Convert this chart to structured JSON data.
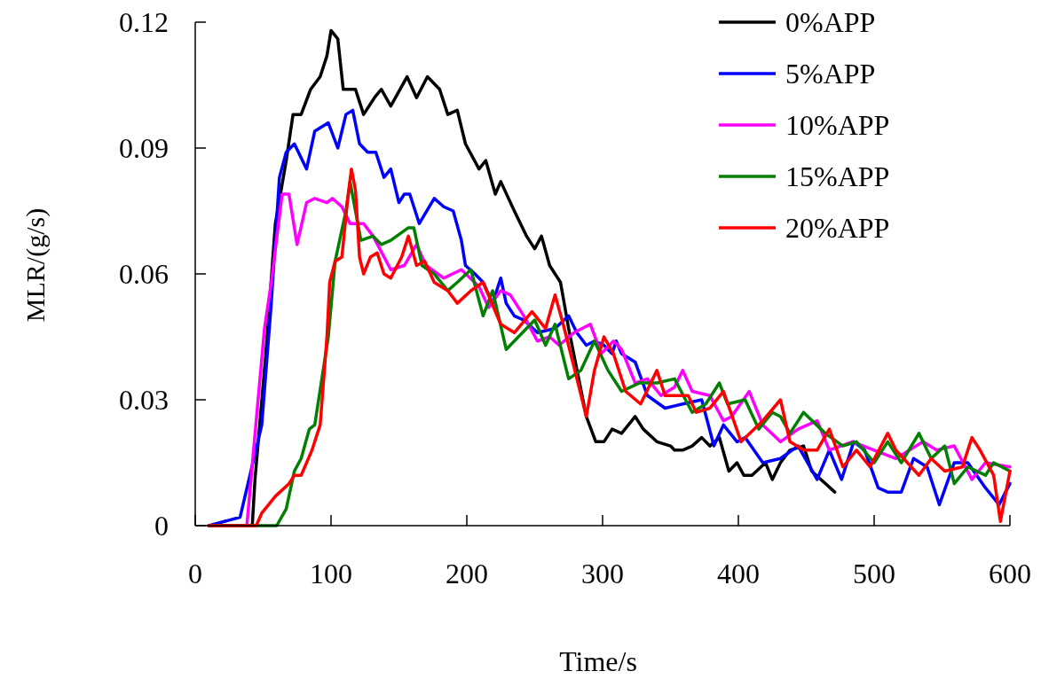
{
  "chart_data": {
    "type": "line",
    "xlabel": "Time/s",
    "ylabel": "MLR/(g/s)",
    "xlim": [
      0,
      600
    ],
    "xticks": [
      0,
      100,
      200,
      300,
      400,
      500,
      600
    ],
    "ylim": [
      0,
      0.12
    ],
    "yticks": [
      0,
      0.03,
      0.06,
      0.09,
      0.12
    ],
    "grid": false,
    "legend": "top right",
    "marker": "none",
    "line_style": "solid",
    "series": [
      {
        "name": "0%APP",
        "color": "#000000",
        "x": [
          10,
          42,
          44,
          52,
          59,
          67,
          72,
          78,
          85,
          92,
          97,
          100,
          105,
          109,
          118,
          124,
          132,
          137,
          144,
          156,
          163,
          171,
          180,
          186,
          193,
          199,
          209,
          214,
          221,
          225,
          235,
          244,
          250,
          255,
          261,
          269,
          275,
          288,
          295,
          301,
          307,
          314,
          324,
          330,
          340,
          350,
          353,
          359,
          366,
          373,
          379,
          386,
          393,
          399,
          404,
          410,
          420,
          425,
          431,
          438,
          448,
          454,
          471
        ],
        "values": [
          0,
          0,
          0.011,
          0.041,
          0.072,
          0.087,
          0.098,
          0.098,
          0.104,
          0.107,
          0.112,
          0.118,
          0.116,
          0.104,
          0.104,
          0.098,
          0.102,
          0.104,
          0.1,
          0.107,
          0.102,
          0.107,
          0.104,
          0.098,
          0.099,
          0.091,
          0.085,
          0.087,
          0.079,
          0.082,
          0.075,
          0.069,
          0.066,
          0.069,
          0.062,
          0.058,
          0.047,
          0.026,
          0.02,
          0.02,
          0.023,
          0.022,
          0.026,
          0.023,
          0.02,
          0.019,
          0.018,
          0.018,
          0.019,
          0.021,
          0.019,
          0.021,
          0.013,
          0.015,
          0.012,
          0.012,
          0.015,
          0.011,
          0.015,
          0.018,
          0.019,
          0.013,
          0.008
        ]
      },
      {
        "name": "5%APP",
        "color": "#0000ff",
        "x": [
          10,
          33,
          49,
          56,
          62,
          67,
          73,
          82,
          88,
          98,
          105,
          111,
          116,
          121,
          127,
          133,
          139,
          144,
          147,
          150,
          154,
          158,
          165,
          176,
          183,
          190,
          196,
          199,
          206,
          212,
          219,
          225,
          229,
          235,
          242,
          252,
          265,
          275,
          281,
          288,
          294,
          301,
          307,
          310,
          314,
          324,
          333,
          346,
          359,
          373,
          382,
          389,
          399,
          405,
          418,
          431,
          444,
          458,
          467,
          476,
          485,
          493,
          503,
          510,
          520,
          529,
          539,
          548,
          559,
          569,
          582,
          592,
          600
        ],
        "values": [
          0,
          0.002,
          0.024,
          0.053,
          0.083,
          0.089,
          0.091,
          0.085,
          0.094,
          0.096,
          0.09,
          0.098,
          0.099,
          0.091,
          0.089,
          0.089,
          0.083,
          0.085,
          0.081,
          0.077,
          0.079,
          0.079,
          0.072,
          0.078,
          0.076,
          0.075,
          0.068,
          0.062,
          0.06,
          0.058,
          0.053,
          0.059,
          0.053,
          0.05,
          0.049,
          0.046,
          0.047,
          0.05,
          0.046,
          0.043,
          0.044,
          0.043,
          0.041,
          0.044,
          0.041,
          0.039,
          0.031,
          0.028,
          0.029,
          0.03,
          0.019,
          0.024,
          0.02,
          0.021,
          0.015,
          0.016,
          0.019,
          0.011,
          0.018,
          0.011,
          0.02,
          0.018,
          0.009,
          0.008,
          0.008,
          0.016,
          0.014,
          0.005,
          0.015,
          0.015,
          0.009,
          0.005,
          0.01
        ]
      },
      {
        "name": "10%APP",
        "color": "#ff00ff",
        "x": [
          10,
          38,
          46,
          51,
          56,
          64,
          69,
          75,
          82,
          88,
          97,
          101,
          108,
          114,
          124,
          131,
          144,
          154,
          163,
          170,
          183,
          196,
          209,
          216,
          225,
          232,
          242,
          252,
          261,
          268,
          279,
          291,
          299,
          308,
          314,
          324,
          333,
          343,
          353,
          359,
          366,
          379,
          389,
          395,
          408,
          418,
          431,
          444,
          458,
          467,
          484,
          500,
          516,
          526,
          536,
          546,
          559,
          572,
          582,
          600
        ],
        "values": [
          0,
          0,
          0.029,
          0.047,
          0.058,
          0.079,
          0.079,
          0.067,
          0.077,
          0.078,
          0.077,
          0.078,
          0.076,
          0.072,
          0.072,
          0.069,
          0.061,
          0.062,
          0.067,
          0.062,
          0.059,
          0.061,
          0.057,
          0.052,
          0.056,
          0.055,
          0.05,
          0.044,
          0.045,
          0.043,
          0.046,
          0.048,
          0.041,
          0.044,
          0.042,
          0.034,
          0.035,
          0.031,
          0.033,
          0.037,
          0.032,
          0.031,
          0.025,
          0.026,
          0.032,
          0.024,
          0.02,
          0.023,
          0.025,
          0.018,
          0.02,
          0.018,
          0.016,
          0.018,
          0.02,
          0.018,
          0.019,
          0.011,
          0.015,
          0.014
        ]
      },
      {
        "name": "15%APP",
        "color": "#008000",
        "x": [
          10,
          60,
          67,
          73,
          78,
          84,
          88,
          98,
          103,
          111,
          114,
          118,
          122,
          131,
          137,
          144,
          157,
          161,
          167,
          176,
          186,
          193,
          203,
          212,
          219,
          229,
          235,
          250,
          258,
          265,
          275,
          284,
          294,
          304,
          314,
          327,
          340,
          353,
          366,
          376,
          386,
          392,
          405,
          415,
          425,
          431,
          438,
          448,
          464,
          477,
          487,
          500,
          510,
          520,
          533,
          542,
          552,
          559,
          569,
          582,
          588,
          600
        ],
        "values": [
          0,
          0,
          0.004,
          0.013,
          0.016,
          0.023,
          0.024,
          0.045,
          0.063,
          0.075,
          0.082,
          0.075,
          0.068,
          0.069,
          0.067,
          0.068,
          0.071,
          0.071,
          0.062,
          0.06,
          0.056,
          0.058,
          0.061,
          0.05,
          0.056,
          0.042,
          0.044,
          0.049,
          0.043,
          0.048,
          0.035,
          0.037,
          0.044,
          0.037,
          0.032,
          0.034,
          0.034,
          0.035,
          0.027,
          0.029,
          0.034,
          0.029,
          0.03,
          0.023,
          0.027,
          0.026,
          0.022,
          0.027,
          0.022,
          0.019,
          0.02,
          0.015,
          0.02,
          0.015,
          0.022,
          0.016,
          0.019,
          0.01,
          0.014,
          0.012,
          0.015,
          0.013
        ]
      },
      {
        "name": "20%APP",
        "color": "#ff0000",
        "x": [
          10,
          45,
          49,
          59,
          69,
          73,
          78,
          86,
          92,
          97,
          99,
          103,
          108,
          112,
          115,
          118,
          121,
          124,
          129,
          134,
          139,
          144,
          152,
          157,
          163,
          169,
          176,
          186,
          193,
          203,
          212,
          225,
          235,
          248,
          258,
          265,
          271,
          278,
          288,
          294,
          301,
          308,
          317,
          328,
          340,
          346,
          353,
          363,
          369,
          379,
          389,
          402,
          418,
          431,
          438,
          448,
          458,
          467,
          477,
          487,
          497,
          510,
          516,
          533,
          542,
          552,
          565,
          572,
          578,
          588,
          593,
          600
        ],
        "values": [
          0,
          0,
          0.003,
          0.007,
          0.01,
          0.012,
          0.012,
          0.018,
          0.024,
          0.045,
          0.058,
          0.063,
          0.064,
          0.077,
          0.085,
          0.08,
          0.064,
          0.06,
          0.064,
          0.065,
          0.06,
          0.059,
          0.064,
          0.069,
          0.062,
          0.063,
          0.058,
          0.056,
          0.053,
          0.056,
          0.058,
          0.048,
          0.046,
          0.051,
          0.047,
          0.055,
          0.048,
          0.039,
          0.026,
          0.037,
          0.045,
          0.041,
          0.032,
          0.029,
          0.037,
          0.031,
          0.031,
          0.031,
          0.027,
          0.028,
          0.032,
          0.02,
          0.025,
          0.03,
          0.02,
          0.018,
          0.018,
          0.023,
          0.014,
          0.018,
          0.014,
          0.022,
          0.018,
          0.012,
          0.016,
          0.013,
          0.014,
          0.021,
          0.018,
          0.012,
          0.001,
          0.013
        ]
      }
    ]
  }
}
